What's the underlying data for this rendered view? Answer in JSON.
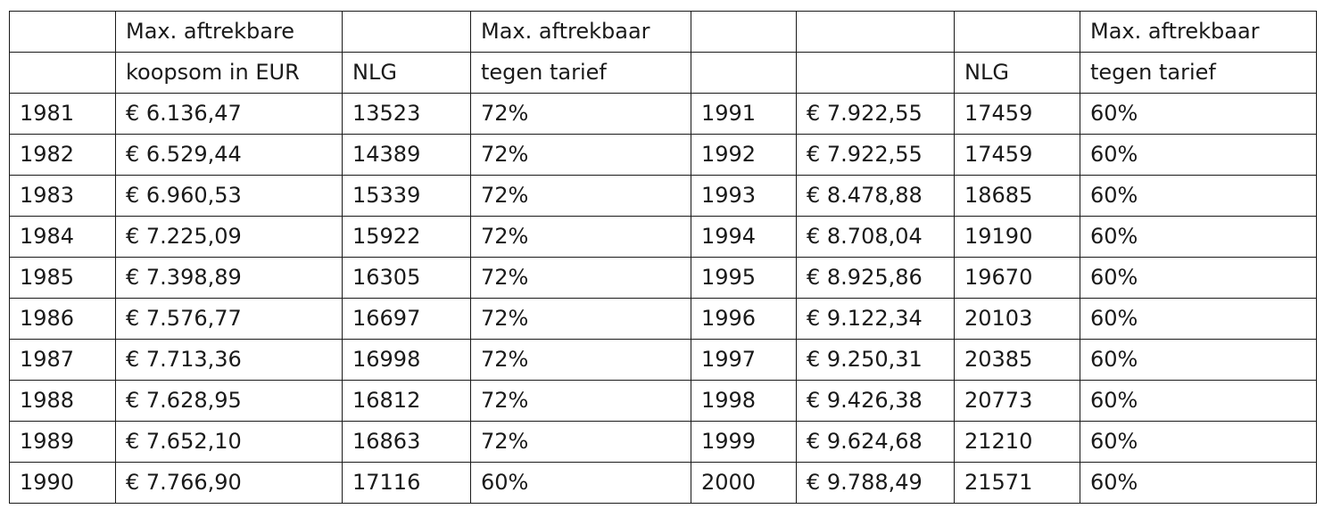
{
  "header": {
    "row1": [
      "",
      "Max. aftrekbare",
      "",
      "Max. aftrekbaar",
      "",
      "",
      "",
      "Max. aftrekbaar"
    ],
    "row2": [
      "",
      "koopsom in EUR",
      "NLG",
      "tegen tarief",
      "",
      "",
      "NLG",
      "tegen tarief"
    ]
  },
  "rows": [
    [
      "1981",
      "€ 6.136,47",
      "13523",
      "72%",
      "1991",
      "€ 7.922,55",
      "17459",
      "60%"
    ],
    [
      "1982",
      "€ 6.529,44",
      "14389",
      "72%",
      "1992",
      "€ 7.922,55",
      "17459",
      "60%"
    ],
    [
      "1983",
      "€ 6.960,53",
      "15339",
      "72%",
      "1993",
      "€ 8.478,88",
      "18685",
      "60%"
    ],
    [
      "1984",
      "€ 7.225,09",
      "15922",
      "72%",
      "1994",
      "€ 8.708,04",
      "19190",
      "60%"
    ],
    [
      "1985",
      "€ 7.398,89",
      "16305",
      "72%",
      "1995",
      "€ 8.925,86",
      "19670",
      "60%"
    ],
    [
      "1986",
      "€ 7.576,77",
      "16697",
      "72%",
      "1996",
      "€ 9.122,34",
      "20103",
      "60%"
    ],
    [
      "1987",
      "€ 7.713,36",
      "16998",
      "72%",
      "1997",
      "€ 9.250,31",
      "20385",
      "60%"
    ],
    [
      "1988",
      "€ 7.628,95",
      "16812",
      "72%",
      "1998",
      "€ 9.426,38",
      "20773",
      "60%"
    ],
    [
      "1989",
      "€ 7.652,10",
      "16863",
      "72%",
      "1999",
      "€ 9.624,68",
      "21210",
      "60%"
    ],
    [
      "1990",
      "€ 7.766,90",
      "17116",
      "60%",
      "2000",
      "€ 9.788,49",
      "21571",
      "60%"
    ]
  ]
}
